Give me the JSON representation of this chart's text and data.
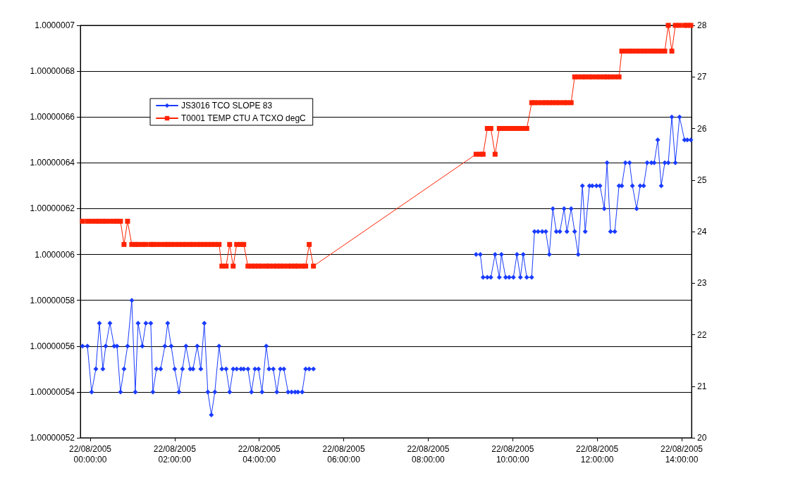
{
  "chart_data": {
    "type": "line",
    "grid": "y",
    "legend": "top left",
    "line_style": "solid",
    "xlim": [
      "2005-08-21T23:46",
      "2005-08-22T14:14"
    ],
    "xticks": [
      {
        "value": "2005-08-22T00:00",
        "label": "22/08/2005\n00:00:00"
      },
      {
        "value": "2005-08-22T02:00",
        "label": "22/08/2005\n02:00:00"
      },
      {
        "value": "2005-08-22T04:00",
        "label": "22/08/2005\n04:00:00"
      },
      {
        "value": "2005-08-22T06:00",
        "label": "22/08/2005\n06:00:00"
      },
      {
        "value": "2005-08-22T08:00",
        "label": "22/08/2005\n08:00:00"
      },
      {
        "value": "2005-08-22T10:00",
        "label": "22/08/2005\n10:00:00"
      },
      {
        "value": "2005-08-22T12:00",
        "label": "22/08/2005\n12:00:00"
      },
      {
        "value": "2005-08-22T14:00",
        "label": "22/08/2005\n14:00:00"
      }
    ],
    "ylim": [
      1.00000052,
      1.0000007
    ],
    "yticks": [
      1.00000052,
      1.00000054,
      1.00000056,
      1.00000058,
      1.0000006,
      1.00000062,
      1.00000064,
      1.00000066,
      1.00000068,
      1.0000007
    ],
    "y2lim": [
      20,
      28
    ],
    "y2ticks": [
      20,
      21,
      22,
      23,
      24,
      25,
      26,
      27,
      28
    ],
    "x": [
      "2005-08-21T23:49",
      "2005-08-21T23:56",
      "2005-08-22T00:02",
      "2005-08-22T00:08",
      "2005-08-22T00:13",
      "2005-08-22T00:18",
      "2005-08-22T00:22",
      "2005-08-22T00:28",
      "2005-08-22T00:34",
      "2005-08-22T00:38",
      "2005-08-22T00:43",
      "2005-08-22T00:48",
      "2005-08-22T00:53",
      "2005-08-22T00:59",
      "2005-08-22T01:04",
      "2005-08-22T01:08",
      "2005-08-22T01:14",
      "2005-08-22T01:19",
      "2005-08-22T01:26",
      "2005-08-22T01:29",
      "2005-08-22T01:34",
      "2005-08-22T01:40",
      "2005-08-22T01:46",
      "2005-08-22T01:50",
      "2005-08-22T01:55",
      "2005-08-22T02:00",
      "2005-08-22T02:06",
      "2005-08-22T02:11",
      "2005-08-22T02:16",
      "2005-08-22T02:22",
      "2005-08-22T02:26",
      "2005-08-22T02:32",
      "2005-08-22T02:37",
      "2005-08-22T02:42",
      "2005-08-22T02:47",
      "2005-08-22T02:52",
      "2005-08-22T02:57",
      "2005-08-22T03:03",
      "2005-08-22T03:07",
      "2005-08-22T03:13",
      "2005-08-22T03:18",
      "2005-08-22T03:23",
      "2005-08-22T03:28",
      "2005-08-22T03:34",
      "2005-08-22T03:38",
      "2005-08-22T03:44",
      "2005-08-22T03:49",
      "2005-08-22T03:54",
      "2005-08-22T03:59",
      "2005-08-22T04:04",
      "2005-08-22T04:10",
      "2005-08-22T04:14",
      "2005-08-22T04:20",
      "2005-08-22T04:25",
      "2005-08-22T04:30",
      "2005-08-22T04:35",
      "2005-08-22T04:41",
      "2005-08-22T04:46",
      "2005-08-22T04:51",
      "2005-08-22T04:55",
      "2005-08-22T05:01",
      "2005-08-22T05:06",
      "2005-08-22T05:11",
      "2005-08-22T05:17",
      "2005-08-22T09:08",
      "2005-08-22T09:14",
      "2005-08-22T09:18",
      "2005-08-22T09:24",
      "2005-08-22T09:29",
      "2005-08-22T09:35",
      "2005-08-22T09:41",
      "2005-08-22T09:44",
      "2005-08-22T09:50",
      "2005-08-22T09:55",
      "2005-08-22T10:01",
      "2005-08-22T10:06",
      "2005-08-22T10:11",
      "2005-08-22T10:15",
      "2005-08-22T10:20",
      "2005-08-22T10:27",
      "2005-08-22T10:31",
      "2005-08-22T10:36",
      "2005-08-22T10:42",
      "2005-08-22T10:47",
      "2005-08-22T10:52",
      "2005-08-22T10:57",
      "2005-08-22T11:02",
      "2005-08-22T11:07",
      "2005-08-22T11:13",
      "2005-08-22T11:17",
      "2005-08-22T11:23",
      "2005-08-22T11:28",
      "2005-08-22T11:33",
      "2005-08-22T11:39",
      "2005-08-22T11:43",
      "2005-08-22T11:49",
      "2005-08-22T11:53",
      "2005-08-22T11:59",
      "2005-08-22T12:04",
      "2005-08-22T12:10",
      "2005-08-22T12:14",
      "2005-08-22T12:19",
      "2005-08-22T12:25",
      "2005-08-22T12:31",
      "2005-08-22T12:35",
      "2005-08-22T12:40",
      "2005-08-22T12:46",
      "2005-08-22T12:50",
      "2005-08-22T12:56",
      "2005-08-22T13:01",
      "2005-08-22T13:06",
      "2005-08-22T13:11",
      "2005-08-22T13:17",
      "2005-08-22T13:21",
      "2005-08-22T13:26",
      "2005-08-22T13:31",
      "2005-08-22T13:36",
      "2005-08-22T13:41",
      "2005-08-22T13:46",
      "2005-08-22T13:51",
      "2005-08-22T13:57",
      "2005-08-22T14:04",
      "2005-08-22T14:08",
      "2005-08-22T14:13"
    ],
    "series": [
      {
        "name": "JS3016 TCO SLOPE 83",
        "color": "#1a3cff",
        "marker": "diamond",
        "x": [
          "2005-08-21T23:49",
          "2005-08-21T23:56",
          "2005-08-22T00:02",
          "2005-08-22T00:08",
          "2005-08-22T00:13",
          "2005-08-22T00:18",
          "2005-08-22T00:22",
          "2005-08-22T00:28",
          "2005-08-22T00:34",
          "2005-08-22T00:38",
          "2005-08-22T00:43",
          "2005-08-22T00:48",
          "2005-08-22T00:53",
          "2005-08-22T00:59",
          "2005-08-22T01:04",
          "2005-08-22T01:08",
          "2005-08-22T01:14",
          "2005-08-22T01:19",
          "2005-08-22T01:26",
          "2005-08-22T01:29",
          "2005-08-22T01:34",
          "2005-08-22T01:40",
          "2005-08-22T01:46",
          "2005-08-22T01:50",
          "2005-08-22T01:55",
          "2005-08-22T02:00",
          "2005-08-22T02:06",
          "2005-08-22T02:11",
          "2005-08-22T02:16",
          "2005-08-22T02:22",
          "2005-08-22T02:26",
          "2005-08-22T02:32",
          "2005-08-22T02:37",
          "2005-08-22T02:42",
          "2005-08-22T02:47",
          "2005-08-22T02:52",
          "2005-08-22T02:57",
          "2005-08-22T03:03",
          "2005-08-22T03:07",
          "2005-08-22T03:13",
          "2005-08-22T03:18",
          "2005-08-22T03:23",
          "2005-08-22T03:28",
          "2005-08-22T03:34",
          "2005-08-22T03:38",
          "2005-08-22T03:44",
          "2005-08-22T03:49",
          "2005-08-22T03:54",
          "2005-08-22T03:59",
          "2005-08-22T04:04",
          "2005-08-22T04:10",
          "2005-08-22T04:14",
          "2005-08-22T04:20",
          "2005-08-22T04:25",
          "2005-08-22T04:30",
          "2005-08-22T04:35",
          "2005-08-22T04:41",
          "2005-08-22T04:46",
          "2005-08-22T04:51",
          "2005-08-22T04:55",
          "2005-08-22T05:01",
          "2005-08-22T05:06",
          "2005-08-22T05:11",
          "2005-08-22T05:17",
          "2005-08-22T07:00",
          "2005-08-22T09:08",
          "2005-08-22T09:14",
          "2005-08-22T09:18",
          "2005-08-22T09:24",
          "2005-08-22T09:29",
          "2005-08-22T09:35",
          "2005-08-22T09:41",
          "2005-08-22T09:44",
          "2005-08-22T09:50",
          "2005-08-22T09:55",
          "2005-08-22T10:01",
          "2005-08-22T10:06",
          "2005-08-22T10:11",
          "2005-08-22T10:15",
          "2005-08-22T10:20",
          "2005-08-22T10:27",
          "2005-08-22T10:31",
          "2005-08-22T10:36",
          "2005-08-22T10:42",
          "2005-08-22T10:47",
          "2005-08-22T10:52",
          "2005-08-22T10:57",
          "2005-08-22T11:02",
          "2005-08-22T11:07",
          "2005-08-22T11:13",
          "2005-08-22T11:17",
          "2005-08-22T11:23",
          "2005-08-22T11:28",
          "2005-08-22T11:33",
          "2005-08-22T11:39",
          "2005-08-22T11:43",
          "2005-08-22T11:49",
          "2005-08-22T11:53",
          "2005-08-22T11:59",
          "2005-08-22T12:04",
          "2005-08-22T12:10",
          "2005-08-22T12:14",
          "2005-08-22T12:19",
          "2005-08-22T12:25",
          "2005-08-22T12:31",
          "2005-08-22T12:35",
          "2005-08-22T12:40",
          "2005-08-22T12:46",
          "2005-08-22T12:50",
          "2005-08-22T12:56",
          "2005-08-22T13:01",
          "2005-08-22T13:06",
          "2005-08-22T13:11",
          "2005-08-22T13:17",
          "2005-08-22T13:21",
          "2005-08-22T13:26",
          "2005-08-22T13:31",
          "2005-08-22T13:36",
          "2005-08-22T13:41",
          "2005-08-22T13:46",
          "2005-08-22T13:51",
          "2005-08-22T13:57",
          "2005-08-22T14:04",
          "2005-08-22T14:08",
          "2005-08-22T14:13"
        ],
        "values": [
          1.00000056,
          1.00000056,
          1.00000054,
          1.00000055,
          1.00000057,
          1.00000055,
          1.00000056,
          1.00000057,
          1.00000056,
          1.00000056,
          1.00000054,
          1.00000055,
          1.00000056,
          1.00000058,
          1.00000054,
          1.00000057,
          1.00000056,
          1.00000057,
          1.00000057,
          1.00000054,
          1.00000055,
          1.00000055,
          1.00000056,
          1.00000057,
          1.00000056,
          1.00000055,
          1.00000054,
          1.00000055,
          1.00000056,
          1.00000055,
          1.00000055,
          1.00000056,
          1.00000055,
          1.00000057,
          1.00000054,
          1.00000053,
          1.00000054,
          1.00000056,
          1.00000055,
          1.00000055,
          1.00000054,
          1.00000055,
          1.00000055,
          1.00000055,
          1.00000055,
          1.00000055,
          1.00000054,
          1.00000055,
          1.00000055,
          1.00000054,
          1.00000056,
          1.00000055,
          1.00000055,
          1.00000054,
          1.00000055,
          1.00000055,
          1.00000054,
          1.00000054,
          1.00000054,
          1.00000054,
          1.00000054,
          1.00000055,
          1.00000055,
          1.00000055,
          null,
          1.0000006,
          1.0000006,
          1.00000059,
          1.00000059,
          1.00000059,
          1.0000006,
          1.00000059,
          1.0000006,
          1.00000059,
          1.00000059,
          1.00000059,
          1.0000006,
          1.00000059,
          1.0000006,
          1.00000059,
          1.00000059,
          1.00000061,
          1.00000061,
          1.00000061,
          1.00000061,
          1.0000006,
          1.00000062,
          1.00000061,
          1.00000061,
          1.00000062,
          1.00000061,
          1.00000062,
          1.00000061,
          1.0000006,
          1.00000063,
          1.00000061,
          1.00000063,
          1.00000063,
          1.00000063,
          1.00000063,
          1.00000062,
          1.00000064,
          1.00000061,
          1.00000061,
          1.00000063,
          1.00000063,
          1.00000064,
          1.00000064,
          1.00000063,
          1.00000062,
          1.00000063,
          1.00000063,
          1.00000064,
          1.00000064,
          1.00000064,
          1.00000065,
          1.00000063,
          1.00000064,
          1.00000064,
          1.00000066,
          1.00000064,
          1.00000066,
          1.00000065,
          1.00000065,
          1.00000065
        ]
      },
      {
        "name": "T0001 TEMP CTU A TCXO degC",
        "color": "#ff2200",
        "marker": "square",
        "axis": "y2",
        "values": [
          24.2,
          24.2,
          24.2,
          24.2,
          24.2,
          24.2,
          24.2,
          24.2,
          24.2,
          24.2,
          24.2,
          23.75,
          24.2,
          23.75,
          23.75,
          23.75,
          23.75,
          23.75,
          23.75,
          23.75,
          23.75,
          23.75,
          23.75,
          23.75,
          23.75,
          23.75,
          23.75,
          23.75,
          23.75,
          23.75,
          23.75,
          23.75,
          23.75,
          23.75,
          23.75,
          23.75,
          23.75,
          23.75,
          23.33,
          23.33,
          23.75,
          23.33,
          23.75,
          23.75,
          23.75,
          23.33,
          23.33,
          23.33,
          23.33,
          23.33,
          23.33,
          23.33,
          23.33,
          23.33,
          23.33,
          23.33,
          23.33,
          23.33,
          23.33,
          23.33,
          23.33,
          23.33,
          23.75,
          23.33,
          25.5,
          25.5,
          25.5,
          26,
          26,
          25.5,
          26,
          26,
          26,
          26,
          26,
          26,
          26,
          26,
          26,
          26.5,
          26.5,
          26.5,
          26.5,
          26.5,
          26.5,
          26.5,
          26.5,
          26.5,
          26.5,
          26.5,
          26.5,
          27,
          27,
          27,
          27,
          27,
          27,
          27,
          27,
          27,
          27,
          27,
          27,
          27,
          27.5,
          27.5,
          27.5,
          27.5,
          27.5,
          27.5,
          27.5,
          27.5,
          27.5,
          27.5,
          27.5,
          27.5,
          27.5,
          28,
          27.5,
          28,
          28,
          28,
          28,
          28
        ]
      }
    ]
  }
}
